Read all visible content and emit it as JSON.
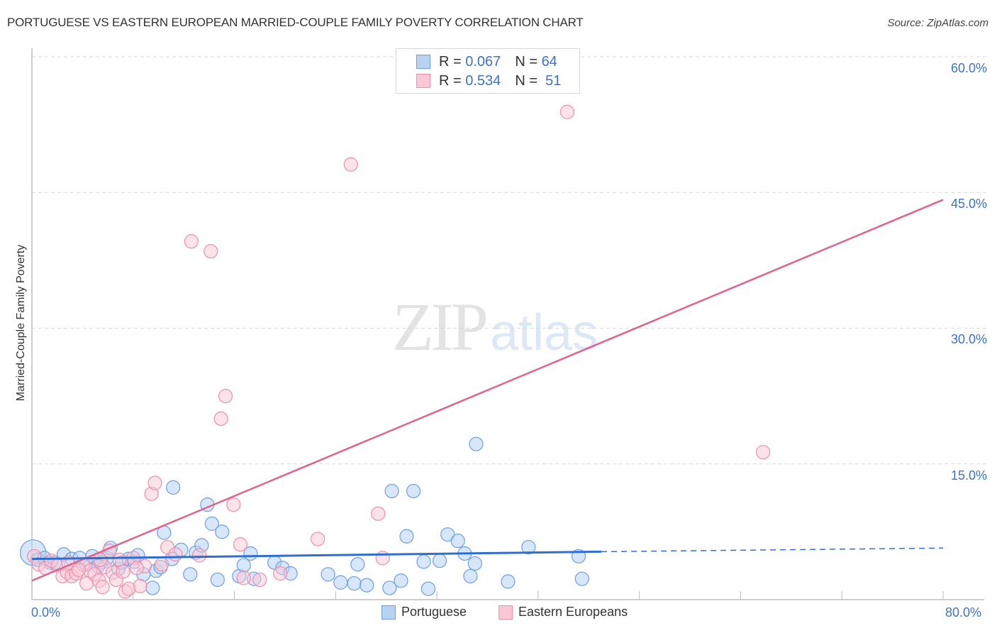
{
  "header": {
    "title": "PORTUGUESE VS EASTERN EUROPEAN MARRIED-COUPLE FAMILY POVERTY CORRELATION CHART",
    "source": "Source: ZipAtlas.com"
  },
  "watermark": {
    "zip": "ZIP",
    "atlas": "atlas"
  },
  "legend": {
    "series": [
      {
        "name": "Portuguese",
        "r_label": "R = ",
        "r_value": "0.067",
        "n_label": "N = ",
        "n_value": "64",
        "fill": "#b8d2f4",
        "stroke": "#6d9fe0"
      },
      {
        "name": "Eastern Europeans",
        "r_label": "R = ",
        "r_value": "0.534",
        "n_label": "N = ",
        "n_value": " 51",
        "fill": "#fac7d5",
        "stroke": "#ec8fab"
      }
    ]
  },
  "axes": {
    "ylabel": "Married-Couple Family Poverty",
    "x_min_label": "0.0%",
    "x_max_label": "80.0%",
    "y_ticks": [
      "60.0%",
      "45.0%",
      "30.0%",
      "15.0%"
    ]
  },
  "colors": {
    "blue_line": "#2f6fd1",
    "pink_line": "#e2628c",
    "grid": "#d9d9d9",
    "axis": "#bdbdbd",
    "tick_text": "#3b73c9"
  },
  "chart_data": {
    "type": "scatter",
    "title": "PORTUGUESE VS EASTERN EUROPEAN MARRIED-COUPLE FAMILY POVERTY CORRELATION CHART",
    "xlabel": "",
    "ylabel": "Married-Couple Family Poverty",
    "xlim": [
      0,
      80
    ],
    "ylim": [
      0,
      62
    ],
    "x_unit": "%",
    "y_unit": "%",
    "x_tick_labels": [
      "0.0%",
      "80.0%"
    ],
    "y_tick_values": [
      15,
      30,
      45,
      60
    ],
    "y_tick_labels": [
      "15.0%",
      "30.0%",
      "45.0%",
      "60.0%"
    ],
    "grid": {
      "horizontal": true,
      "vertical": false
    },
    "legend_position": "top-center and bottom",
    "series": [
      {
        "name": "Portuguese",
        "R": 0.067,
        "N": 64,
        "color": "#6d9fe0",
        "trendline": {
          "x": [
            0,
            50,
            80
          ],
          "y": [
            4.5,
            5.3,
            5.7
          ],
          "solid_until_x": 50,
          "dashed_after": true
        },
        "points": [
          [
            0.1,
            5.2
          ],
          [
            0.5,
            4.4
          ],
          [
            1.1,
            4.6
          ],
          [
            1.6,
            4.1
          ],
          [
            2.0,
            4.1
          ],
          [
            2.8,
            5.0
          ],
          [
            3.5,
            4.5
          ],
          [
            4.2,
            4.6
          ],
          [
            4.8,
            3.9
          ],
          [
            5.3,
            4.8
          ],
          [
            6.1,
            4.1
          ],
          [
            6.6,
            4.6
          ],
          [
            6.9,
            5.7
          ],
          [
            7.6,
            3.4
          ],
          [
            7.9,
            4.1
          ],
          [
            8.5,
            4.5
          ],
          [
            9.0,
            4.2
          ],
          [
            9.3,
            4.9
          ],
          [
            9.8,
            2.8
          ],
          [
            10.6,
            1.3
          ],
          [
            10.9,
            3.2
          ],
          [
            11.3,
            3.6
          ],
          [
            11.6,
            7.4
          ],
          [
            12.3,
            4.5
          ],
          [
            12.4,
            12.4
          ],
          [
            13.1,
            5.5
          ],
          [
            13.9,
            2.8
          ],
          [
            14.4,
            5.2
          ],
          [
            14.9,
            6.0
          ],
          [
            15.4,
            10.5
          ],
          [
            15.8,
            8.4
          ],
          [
            16.3,
            2.2
          ],
          [
            16.7,
            7.5
          ],
          [
            18.2,
            2.6
          ],
          [
            18.6,
            3.8
          ],
          [
            19.2,
            5.1
          ],
          [
            19.5,
            2.3
          ],
          [
            21.3,
            4.1
          ],
          [
            22.0,
            3.5
          ],
          [
            22.7,
            2.9
          ],
          [
            26.0,
            2.8
          ],
          [
            27.1,
            1.9
          ],
          [
            28.6,
            3.9
          ],
          [
            28.3,
            1.8
          ],
          [
            29.4,
            1.6
          ],
          [
            31.4,
            1.3
          ],
          [
            31.6,
            12.0
          ],
          [
            32.4,
            2.1
          ],
          [
            32.9,
            7.0
          ],
          [
            33.5,
            12.0
          ],
          [
            34.4,
            4.2
          ],
          [
            34.8,
            1.2
          ],
          [
            35.8,
            4.3
          ],
          [
            36.5,
            7.2
          ],
          [
            37.4,
            6.5
          ],
          [
            38.0,
            5.1
          ],
          [
            38.5,
            2.6
          ],
          [
            38.9,
            4.0
          ],
          [
            39.0,
            17.2
          ],
          [
            41.8,
            2.0
          ],
          [
            43.6,
            5.8
          ],
          [
            48.0,
            4.8
          ],
          [
            48.3,
            2.3
          ],
          [
            5.8,
            3.7
          ]
        ]
      },
      {
        "name": "Eastern Europeans",
        "R": 0.534,
        "N": 51,
        "color": "#ec8fab",
        "trendline": {
          "x": [
            0,
            80
          ],
          "y": [
            2.1,
            44.2
          ],
          "solid_until_x": 80,
          "dashed_after": false
        },
        "points": [
          [
            0.2,
            4.8
          ],
          [
            0.6,
            3.9
          ],
          [
            1.2,
            3.5
          ],
          [
            1.7,
            4.3
          ],
          [
            2.3,
            3.8
          ],
          [
            2.7,
            2.6
          ],
          [
            3.1,
            3.0
          ],
          [
            3.5,
            2.6
          ],
          [
            3.9,
            2.9
          ],
          [
            4.5,
            3.9
          ],
          [
            4.8,
            1.8
          ],
          [
            5.1,
            3.2
          ],
          [
            5.5,
            2.8
          ],
          [
            5.9,
            2.1
          ],
          [
            6.2,
            1.4
          ],
          [
            6.4,
            3.6
          ],
          [
            6.8,
            5.4
          ],
          [
            7.1,
            3.0
          ],
          [
            7.4,
            2.2
          ],
          [
            7.7,
            4.4
          ],
          [
            8.0,
            3.1
          ],
          [
            8.2,
            0.9
          ],
          [
            8.5,
            1.2
          ],
          [
            8.9,
            4.6
          ],
          [
            9.5,
            1.5
          ],
          [
            9.9,
            3.7
          ],
          [
            10.5,
            11.7
          ],
          [
            10.8,
            12.9
          ],
          [
            11.4,
            3.9
          ],
          [
            11.9,
            5.8
          ],
          [
            12.6,
            5.0
          ],
          [
            14.0,
            39.6
          ],
          [
            14.7,
            4.9
          ],
          [
            15.7,
            38.5
          ],
          [
            16.6,
            20.0
          ],
          [
            17.0,
            22.5
          ],
          [
            17.7,
            10.5
          ],
          [
            18.3,
            6.1
          ],
          [
            18.6,
            2.4
          ],
          [
            20.0,
            2.2
          ],
          [
            21.8,
            2.9
          ],
          [
            25.1,
            6.7
          ],
          [
            28.0,
            48.1
          ],
          [
            30.4,
            9.5
          ],
          [
            30.8,
            4.6
          ],
          [
            47.0,
            53.9
          ],
          [
            64.2,
            16.3
          ],
          [
            3.2,
            4.1
          ],
          [
            4.1,
            3.3
          ],
          [
            6.0,
            4.4
          ],
          [
            9.2,
            3.5
          ]
        ]
      }
    ]
  }
}
